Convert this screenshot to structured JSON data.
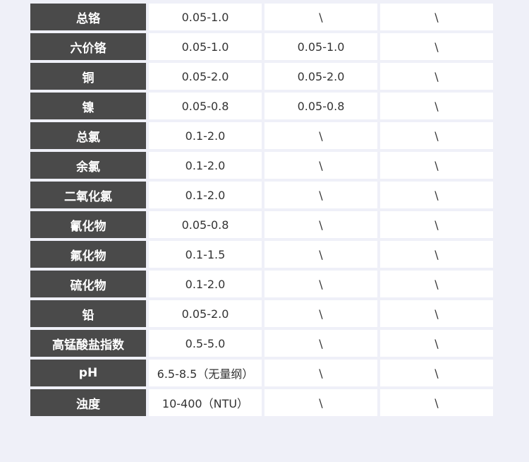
{
  "table": {
    "rows": [
      [
        "总铬",
        "0.05-1.0",
        "\\",
        "\\"
      ],
      [
        "六价铬",
        "0.05-1.0",
        "0.05-1.0",
        "\\"
      ],
      [
        "铜",
        "0.05-2.0",
        "0.05-2.0",
        "\\"
      ],
      [
        "镍",
        "0.05-0.8",
        "0.05-0.8",
        "\\"
      ],
      [
        "总氯",
        "0.1-2.0",
        "\\",
        "\\"
      ],
      [
        "余氯",
        "0.1-2.0",
        "\\",
        "\\"
      ],
      [
        "二氧化氯",
        "0.1-2.0",
        "\\",
        "\\"
      ],
      [
        "氰化物",
        "0.05-0.8",
        "\\",
        "\\"
      ],
      [
        "氟化物",
        "0.1-1.5",
        "\\",
        "\\"
      ],
      [
        "硫化物",
        "0.1-2.0",
        "\\",
        "\\"
      ],
      [
        "铅",
        "0.05-2.0",
        "\\",
        "\\"
      ],
      [
        "高锰酸盐指数",
        "0.5-5.0",
        "\\",
        "\\"
      ],
      [
        "pH",
        "6.5-8.5（无量纲）",
        "\\",
        "\\"
      ],
      [
        "浊度",
        "10-400（NTU）",
        "\\",
        "\\"
      ]
    ]
  }
}
